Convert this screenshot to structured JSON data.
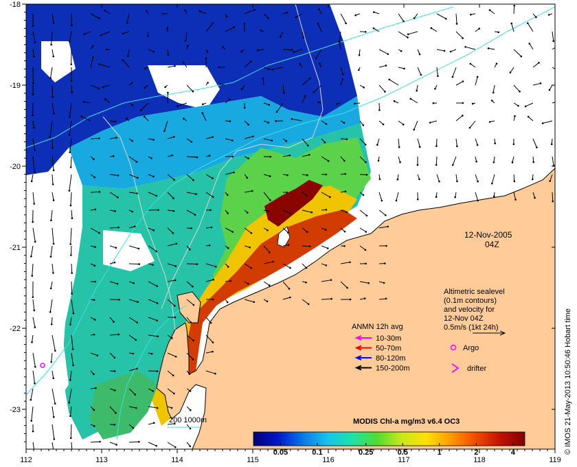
{
  "map": {
    "lon_ticks": [
      "112",
      "113",
      "114",
      "115",
      "116",
      "117",
      "118",
      "119"
    ],
    "lat_ticks": [
      "-18",
      "-19",
      "-20",
      "-21",
      "-22",
      "-23"
    ],
    "date": "12-Nov-2005",
    "time": "04Z",
    "credit": "© IMOS 21-May-2013 10:50:46 Hobart time"
  },
  "legend": {
    "sealevel_lines": [
      "Altimetric sealevel",
      "(0.1m contours)",
      "and velocity for",
      "12-Nov 04Z",
      "0.5m/s (1kt 24h)"
    ],
    "anmn_title": "ANMN 12h avg",
    "anmn_items": [
      {
        "label": "10-30m",
        "color": "#ff00ff"
      },
      {
        "label": "50-70m",
        "color": "#ff0000"
      },
      {
        "label": "80-120m",
        "color": "#0000ff"
      },
      {
        "label": "150-200m",
        "color": "#000000"
      }
    ],
    "argo_label": "Argo",
    "drifter_label": "drifter",
    "isobath_label": "200  1000m"
  },
  "colorbar": {
    "title": "MODIS Chl-a mg/m3 v6.4 OC3",
    "tick_labels": [
      "0.05",
      "0.1",
      "0.25",
      "0.5",
      "1",
      "2",
      "4"
    ],
    "tick_values": [
      0.05,
      0.1,
      0.25,
      0.5,
      1,
      2,
      4
    ],
    "range": [
      0.03,
      5
    ],
    "colors": [
      "#00007a",
      "#0018c8",
      "#0a78e8",
      "#19c3ea",
      "#1fe2a8",
      "#4fdc30",
      "#c9e81c",
      "#ffe100",
      "#ff9a00",
      "#f24a00",
      "#c21200",
      "#800000"
    ]
  },
  "colors": {
    "land": "#ffcc99",
    "coastline": "#000000",
    "isobath": "#40e0e0",
    "sealevel_contour": "#c8c8c8"
  }
}
